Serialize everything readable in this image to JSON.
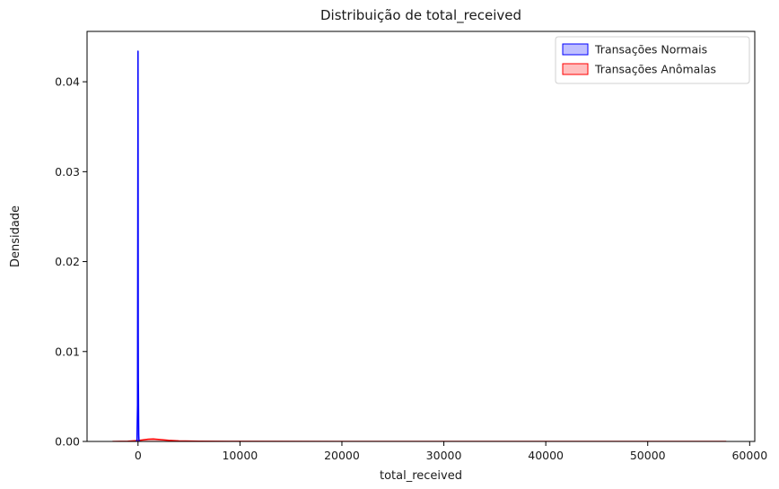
{
  "chart_data": {
    "type": "area",
    "title": "Distribuição de total_received",
    "xlabel": "total_received",
    "ylabel": "Densidade",
    "xlim": [
      -5000,
      60500
    ],
    "ylim": [
      0,
      0.0456
    ],
    "xticks": [
      0,
      10000,
      20000,
      30000,
      40000,
      50000,
      60000
    ],
    "xtick_labels": [
      "0",
      "10000",
      "20000",
      "30000",
      "40000",
      "50000",
      "60000"
    ],
    "yticks": [
      0,
      0.01,
      0.02,
      0.03,
      0.04
    ],
    "ytick_labels": [
      "0.00",
      "0.01",
      "0.02",
      "0.03",
      "0.04"
    ],
    "grid": false,
    "legend_position": "top-right",
    "series": [
      {
        "name": "Transações Normais",
        "color": "#0000ff",
        "fill_alpha": 0.25,
        "x": [
          -150,
          -100,
          -50,
          -20,
          0,
          10,
          20,
          30,
          40,
          50,
          60,
          70,
          80,
          100,
          150,
          200
        ],
        "y": [
          0,
          0.0002,
          0.004,
          0.028,
          0.0434,
          0.03,
          0.012,
          0.0068,
          0.0058,
          0.004,
          0.002,
          0.0008,
          0.0004,
          0.0001,
          2e-05,
          0
        ]
      },
      {
        "name": "Transações Anômalas",
        "color": "#ff0000",
        "fill_alpha": 0.25,
        "x": [
          -2500,
          -1000,
          0,
          500,
          1000,
          1500,
          2000,
          3000,
          4000,
          6000,
          10000,
          20000,
          30000,
          40000,
          50000,
          57700
        ],
        "y": [
          0,
          2e-05,
          0.0001,
          0.00018,
          0.00025,
          0.00027,
          0.00022,
          0.00012,
          6e-05,
          3e-05,
          1e-05,
          5e-06,
          2e-06,
          1e-06,
          1e-06,
          0
        ]
      }
    ]
  }
}
